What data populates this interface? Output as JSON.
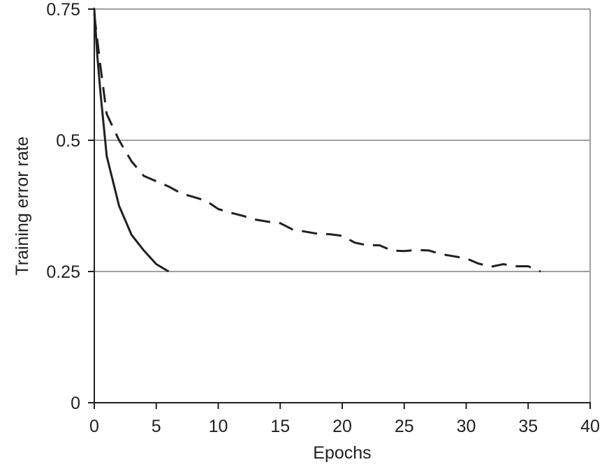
{
  "chart_data": {
    "type": "line",
    "title": "",
    "xlabel": "Epochs",
    "ylabel": "Training error rate",
    "xlim": [
      0,
      40
    ],
    "ylim": [
      0,
      0.75
    ],
    "x_ticks": [
      "0",
      "5",
      "10",
      "15",
      "20",
      "25",
      "30",
      "35",
      "40"
    ],
    "y_ticks": [
      "0",
      "0.25",
      "0.5",
      "0.75"
    ],
    "grid": "horizontal",
    "legend": "none",
    "colors": {
      "line": "#231f20",
      "grid": "#a0a0a0",
      "axis": "#231f20"
    },
    "series": [
      {
        "style": "solid",
        "x": [
          0,
          0.25,
          0.5,
          1,
          2,
          3,
          4,
          5,
          6
        ],
        "y": [
          0.75,
          0.66,
          0.59,
          0.47,
          0.375,
          0.32,
          0.29,
          0.264,
          0.25
        ]
      },
      {
        "style": "dashed",
        "x": [
          0,
          0.5,
          1,
          2,
          3,
          4,
          5,
          6,
          7,
          8,
          9,
          10,
          11,
          12,
          13,
          14,
          15,
          16,
          17,
          18,
          19,
          20,
          21,
          22,
          23,
          24,
          25,
          26,
          27,
          28,
          29,
          30,
          31,
          32,
          33,
          34,
          35,
          36
        ],
        "y": [
          0.74,
          0.64,
          0.55,
          0.5,
          0.46,
          0.432,
          0.422,
          0.412,
          0.399,
          0.392,
          0.385,
          0.369,
          0.362,
          0.356,
          0.349,
          0.345,
          0.342,
          0.33,
          0.326,
          0.322,
          0.321,
          0.318,
          0.305,
          0.3,
          0.3,
          0.29,
          0.289,
          0.291,
          0.29,
          0.283,
          0.279,
          0.275,
          0.265,
          0.259,
          0.264,
          0.26,
          0.26,
          0.25
        ]
      }
    ]
  }
}
